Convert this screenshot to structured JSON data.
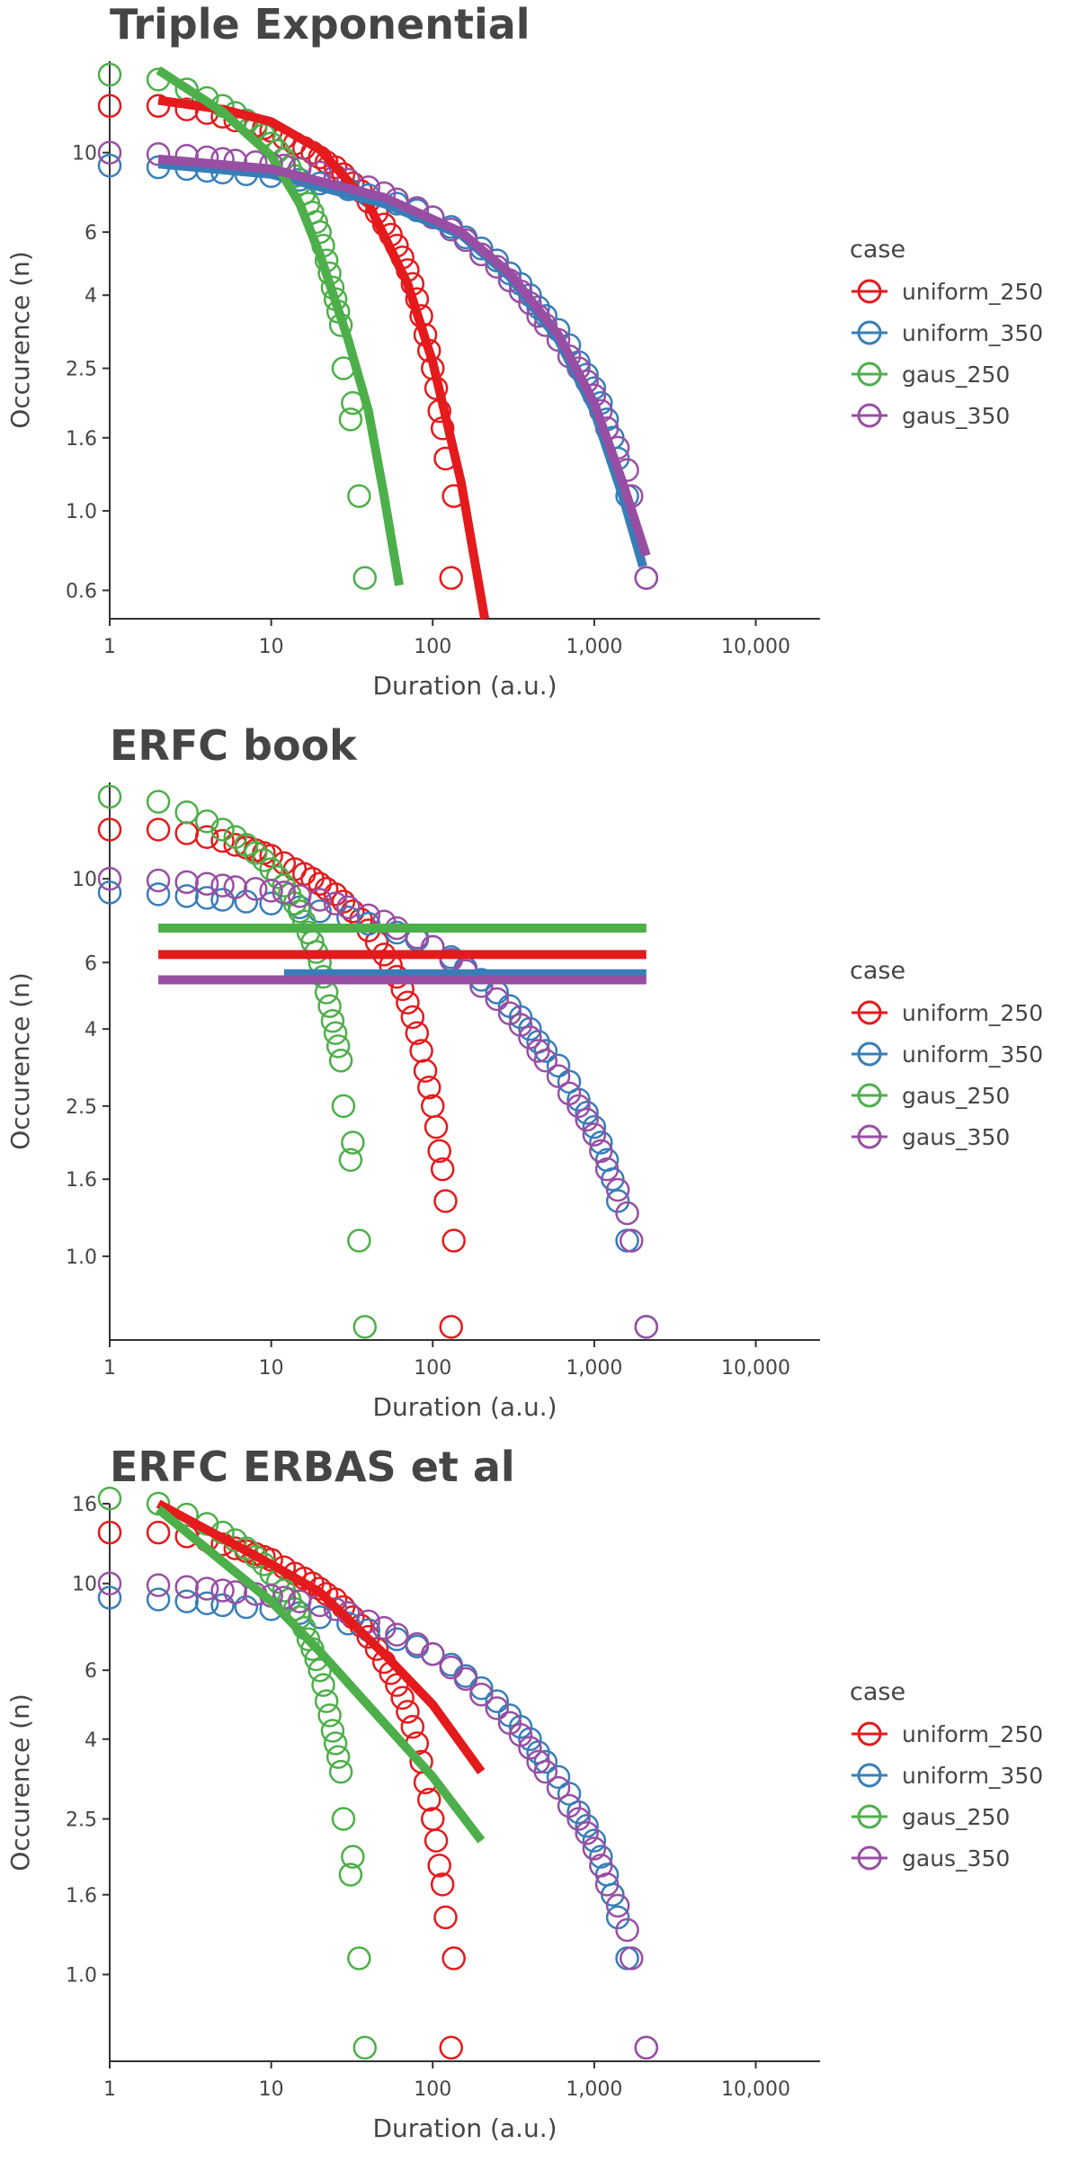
{
  "legend_title": "case",
  "series_colors": {
    "uniform_250": "#e41a1c",
    "uniform_350": "#377eb8",
    "gaus_250": "#4daf4a",
    "gaus_350": "#984ea3"
  },
  "legend": [
    {
      "name": "uniform_250",
      "color": "#e41a1c"
    },
    {
      "name": "uniform_350",
      "color": "#377eb8"
    },
    {
      "name": "gaus_250",
      "color": "#4daf4a"
    },
    {
      "name": "gaus_350",
      "color": "#984ea3"
    }
  ],
  "chart_data": [
    {
      "type": "scatter",
      "title": "Triple Exponential",
      "xlabel": "Duration (a.u.)",
      "ylabel": "Occurence (n)",
      "x_scale": "log",
      "y_scale": "log",
      "xlim": [
        1,
        25000
      ],
      "ylim": [
        0.5,
        18
      ],
      "xticks": [
        {
          "v": 1,
          "label": "1"
        },
        {
          "v": 10,
          "label": "10"
        },
        {
          "v": 100,
          "label": "100"
        },
        {
          "v": 1000,
          "label": "1,000"
        },
        {
          "v": 10000,
          "label": "10,000"
        }
      ],
      "yticks": [
        {
          "v": 0.6,
          "label": "0.6"
        },
        {
          "v": 1.0,
          "label": "1.0"
        },
        {
          "v": 1.6,
          "label": "1.6"
        },
        {
          "v": 2.5,
          "label": "2.5"
        },
        {
          "v": 4,
          "label": "4"
        },
        {
          "v": 6,
          "label": "6"
        },
        {
          "v": 10,
          "label": "10"
        }
      ],
      "fits": [
        {
          "name": "uniform_250",
          "x": [
            2,
            5,
            10,
            20,
            40,
            70,
            100,
            150,
            210
          ],
          "y": [
            14.0,
            13.2,
            12.2,
            10.2,
            7.2,
            4.3,
            2.6,
            1.2,
            0.5
          ]
        },
        {
          "name": "uniform_350",
          "x": [
            2,
            10,
            50,
            150,
            300,
            600,
            1000,
            1500,
            2000
          ],
          "y": [
            9.3,
            8.7,
            7.2,
            5.9,
            4.5,
            3.0,
            1.9,
            1.1,
            0.7
          ]
        },
        {
          "name": "gaus_250",
          "x": [
            2,
            5,
            10,
            15,
            20,
            30,
            40,
            50,
            62
          ],
          "y": [
            17.0,
            13.0,
            9.8,
            7.2,
            5.2,
            3.0,
            1.9,
            1.1,
            0.62
          ]
        },
        {
          "name": "gaus_350",
          "x": [
            2,
            10,
            50,
            150,
            300,
            600,
            1000,
            1500,
            2100
          ],
          "y": [
            9.6,
            9.0,
            7.5,
            6.0,
            4.6,
            3.1,
            2.0,
            1.2,
            0.75
          ]
        }
      ]
    },
    {
      "type": "scatter",
      "title": "ERFC book",
      "xlabel": "Duration (a.u.)",
      "ylabel": "Occurence (n)",
      "x_scale": "log",
      "y_scale": "log",
      "xlim": [
        1,
        25000
      ],
      "ylim": [
        0.6,
        18
      ],
      "xticks": [
        {
          "v": 1,
          "label": "1"
        },
        {
          "v": 10,
          "label": "10"
        },
        {
          "v": 100,
          "label": "100"
        },
        {
          "v": 1000,
          "label": "1,000"
        },
        {
          "v": 10000,
          "label": "10,000"
        }
      ],
      "yticks": [
        {
          "v": 1.0,
          "label": "1.0"
        },
        {
          "v": 1.6,
          "label": "1.6"
        },
        {
          "v": 2.5,
          "label": "2.5"
        },
        {
          "v": 4,
          "label": "4"
        },
        {
          "v": 6,
          "label": "6"
        },
        {
          "v": 10,
          "label": "10"
        }
      ],
      "fits": [
        {
          "name": "gaus_250",
          "x": [
            2,
            2100
          ],
          "y": [
            7.4,
            7.4
          ]
        },
        {
          "name": "uniform_250",
          "x": [
            2,
            2100
          ],
          "y": [
            6.3,
            6.3
          ]
        },
        {
          "name": "uniform_350",
          "x": [
            12,
            2100
          ],
          "y": [
            5.6,
            5.6
          ]
        },
        {
          "name": "gaus_350",
          "x": [
            2,
            2100
          ],
          "y": [
            5.4,
            5.4
          ]
        }
      ]
    },
    {
      "type": "scatter",
      "title": "ERFC ERBAS et al",
      "xlabel": "Duration (a.u.)",
      "ylabel": "Occurence (n)",
      "x_scale": "log",
      "y_scale": "log",
      "xlim": [
        1,
        25000
      ],
      "ylim": [
        0.6,
        16
      ],
      "xticks": [
        {
          "v": 1,
          "label": "1"
        },
        {
          "v": 10,
          "label": "10"
        },
        {
          "v": 100,
          "label": "100"
        },
        {
          "v": 1000,
          "label": "1,000"
        },
        {
          "v": 10000,
          "label": "10,000"
        }
      ],
      "yticks": [
        {
          "v": 1.0,
          "label": "1.0"
        },
        {
          "v": 1.6,
          "label": "1.6"
        },
        {
          "v": 2.5,
          "label": "2.5"
        },
        {
          "v": 4,
          "label": "4"
        },
        {
          "v": 6,
          "label": "6"
        },
        {
          "v": 10,
          "label": "10"
        },
        {
          "v": 16,
          "label": "16"
        }
      ],
      "fits": [
        {
          "name": "uniform_250",
          "x": [
            2,
            10,
            20,
            50,
            100,
            200
          ],
          "y": [
            16.0,
            11.2,
            9.5,
            6.6,
            4.9,
            3.3
          ]
        },
        {
          "name": "gaus_250",
          "x": [
            2,
            10,
            20,
            50,
            100,
            200
          ],
          "y": [
            15.5,
            9.0,
            6.7,
            4.4,
            3.2,
            2.2
          ]
        }
      ]
    }
  ],
  "scatter_data": {
    "uniform_250": [
      [
        1,
        13.5
      ],
      [
        2,
        13.5
      ],
      [
        3,
        13.2
      ],
      [
        4,
        12.9
      ],
      [
        5,
        12.6
      ],
      [
        6,
        12.3
      ],
      [
        7,
        12.1
      ],
      [
        8,
        11.9
      ],
      [
        9,
        11.7
      ],
      [
        10,
        11.5
      ],
      [
        12,
        11.0
      ],
      [
        14,
        10.6
      ],
      [
        16,
        10.3
      ],
      [
        18,
        10.0
      ],
      [
        20,
        9.7
      ],
      [
        22,
        9.4
      ],
      [
        25,
        9.1
      ],
      [
        28,
        8.7
      ],
      [
        32,
        8.2
      ],
      [
        36,
        7.8
      ],
      [
        40,
        7.3
      ],
      [
        45,
        6.8
      ],
      [
        50,
        6.3
      ],
      [
        55,
        5.9
      ],
      [
        60,
        5.5
      ],
      [
        65,
        5.1
      ],
      [
        70,
        4.7
      ],
      [
        75,
        4.3
      ],
      [
        80,
        3.9
      ],
      [
        85,
        3.5
      ],
      [
        90,
        3.1
      ],
      [
        95,
        2.8
      ],
      [
        100,
        2.5
      ],
      [
        105,
        2.2
      ],
      [
        110,
        1.9
      ],
      [
        115,
        1.7
      ],
      [
        120,
        1.4
      ],
      [
        135,
        1.1
      ],
      [
        130,
        0.65
      ]
    ],
    "uniform_350": [
      [
        1,
        9.2
      ],
      [
        2,
        9.1
      ],
      [
        3,
        9.0
      ],
      [
        4,
        8.9
      ],
      [
        5,
        8.8
      ],
      [
        7,
        8.7
      ],
      [
        10,
        8.6
      ],
      [
        15,
        8.4
      ],
      [
        20,
        8.2
      ],
      [
        30,
        7.9
      ],
      [
        40,
        7.6
      ],
      [
        60,
        7.2
      ],
      [
        80,
        6.9
      ],
      [
        100,
        6.6
      ],
      [
        130,
        6.2
      ],
      [
        160,
        5.8
      ],
      [
        200,
        5.4
      ],
      [
        250,
        5.0
      ],
      [
        300,
        4.6
      ],
      [
        350,
        4.3
      ],
      [
        400,
        4.0
      ],
      [
        450,
        3.7
      ],
      [
        500,
        3.5
      ],
      [
        600,
        3.2
      ],
      [
        700,
        2.9
      ],
      [
        800,
        2.6
      ],
      [
        900,
        2.4
      ],
      [
        1000,
        2.2
      ],
      [
        1100,
        2.0
      ],
      [
        1200,
        1.8
      ],
      [
        1300,
        1.6
      ],
      [
        1400,
        1.4
      ],
      [
        1600,
        1.1
      ],
      [
        2100,
        0.65
      ]
    ],
    "gaus_250": [
      [
        1,
        16.5
      ],
      [
        2,
        16.0
      ],
      [
        3,
        15.0
      ],
      [
        4,
        14.2
      ],
      [
        5,
        13.5
      ],
      [
        6,
        12.9
      ],
      [
        7,
        12.3
      ],
      [
        8,
        11.7
      ],
      [
        9,
        11.2
      ],
      [
        10,
        10.6
      ],
      [
        11,
        10.1
      ],
      [
        12,
        9.6
      ],
      [
        13,
        9.1
      ],
      [
        14,
        8.6
      ],
      [
        15,
        8.2
      ],
      [
        16,
        7.7
      ],
      [
        17,
        7.2
      ],
      [
        18,
        6.8
      ],
      [
        19,
        6.4
      ],
      [
        20,
        6.0
      ],
      [
        21,
        5.5
      ],
      [
        22,
        5.0
      ],
      [
        23,
        4.6
      ],
      [
        24,
        4.2
      ],
      [
        25,
        3.9
      ],
      [
        26,
        3.6
      ],
      [
        27,
        3.3
      ],
      [
        28,
        2.5
      ],
      [
        32,
        2.0
      ],
      [
        31,
        1.8
      ],
      [
        35,
        1.1
      ],
      [
        38,
        0.65
      ]
    ],
    "gaus_350": [
      [
        1,
        10.0
      ],
      [
        2,
        9.9
      ],
      [
        3,
        9.8
      ],
      [
        4,
        9.7
      ],
      [
        5,
        9.6
      ],
      [
        6,
        9.5
      ],
      [
        8,
        9.4
      ],
      [
        10,
        9.3
      ],
      [
        12,
        9.2
      ],
      [
        15,
        9.0
      ],
      [
        20,
        8.8
      ],
      [
        25,
        8.6
      ],
      [
        30,
        8.4
      ],
      [
        40,
        8.0
      ],
      [
        50,
        7.7
      ],
      [
        60,
        7.4
      ],
      [
        80,
        7.0
      ],
      [
        100,
        6.6
      ],
      [
        130,
        6.1
      ],
      [
        160,
        5.7
      ],
      [
        200,
        5.2
      ],
      [
        250,
        4.8
      ],
      [
        300,
        4.4
      ],
      [
        350,
        4.1
      ],
      [
        400,
        3.8
      ],
      [
        450,
        3.5
      ],
      [
        500,
        3.3
      ],
      [
        600,
        3.0
      ],
      [
        700,
        2.7
      ],
      [
        800,
        2.5
      ],
      [
        900,
        2.3
      ],
      [
        1000,
        2.1
      ],
      [
        1100,
        1.9
      ],
      [
        1200,
        1.7
      ],
      [
        1400,
        1.5
      ],
      [
        1600,
        1.3
      ],
      [
        1700,
        1.1
      ],
      [
        2100,
        0.65
      ]
    ]
  }
}
